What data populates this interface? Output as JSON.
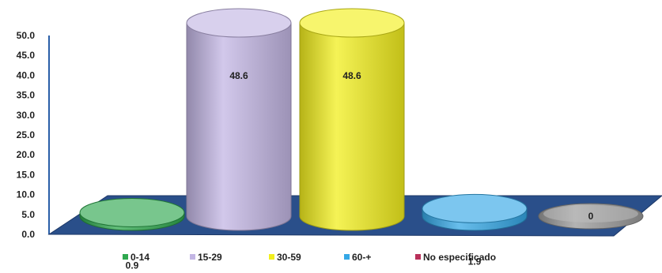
{
  "chart_data": {
    "type": "bar",
    "style": "3d-cylinder",
    "categories": [
      "0-14",
      "15-29",
      "30-59",
      "60-+",
      "No especificado"
    ],
    "values": [
      0.9,
      48.6,
      48.6,
      1.9,
      0
    ],
    "data_labels": [
      "0.9",
      "48.6",
      "48.6",
      "1.9",
      "0"
    ],
    "colors": [
      "#2fa84f",
      "#c3b6e4",
      "#f2ef1e",
      "#35a8e6",
      "#b9305a"
    ],
    "base_colors": [
      "#2fa84f",
      "#c3b6e4",
      "#f2ef1e",
      "#35a8e6",
      "#9a9a9a"
    ],
    "ylim": [
      0,
      50
    ],
    "yticks": [
      "0.0",
      "5.0",
      "10.0",
      "15.0",
      "20.0",
      "25.0",
      "30.0",
      "35.0",
      "40.0",
      "45.0",
      "50.0"
    ],
    "floor_color": "#2a4f8a",
    "legend_position": "bottom",
    "grid": false
  }
}
